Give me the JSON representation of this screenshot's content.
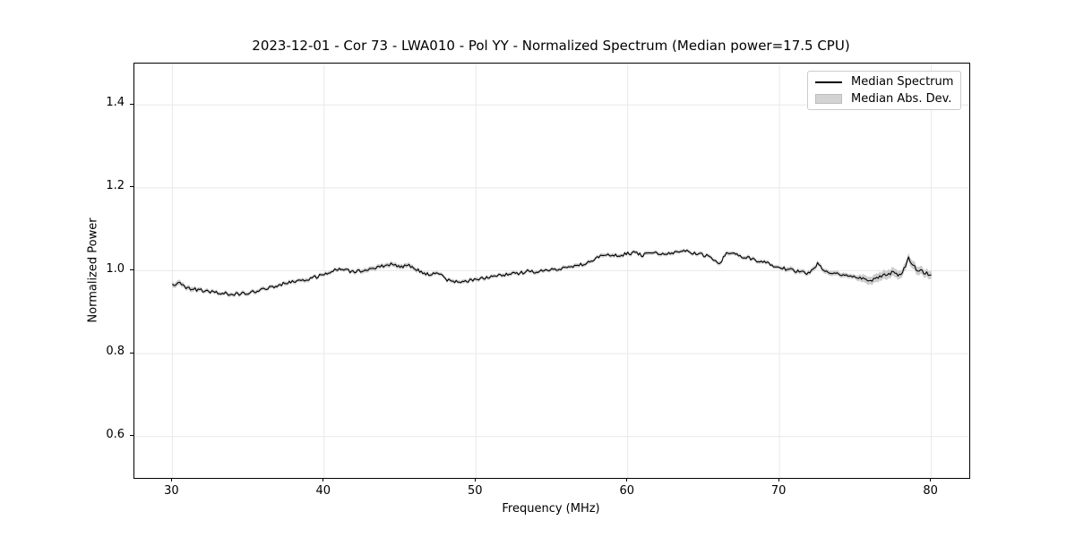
{
  "title": "2023-12-01 - Cor 73 - LWA010 - Pol YY - Normalized Spectrum (Median power=17.5 CPU)",
  "axes": {
    "xlabel": "Frequency (MHz)",
    "ylabel": "Normalized Power"
  },
  "legend": {
    "items": [
      {
        "label": "Median Spectrum",
        "type": "line"
      },
      {
        "label": "Median Abs. Dev.",
        "type": "patch"
      }
    ]
  },
  "colors": {
    "line": "#000000",
    "band": "#c4c4c4",
    "grid": "#e8e8e8",
    "spine": "#000000",
    "legend_border": "#cccccc",
    "background": "#ffffff"
  },
  "chart_data": {
    "type": "line",
    "title": "2023-12-01 - Cor 73 - LWA010 - Pol YY - Normalized Spectrum (Median power=17.5 CPU)",
    "xlabel": "Frequency (MHz)",
    "ylabel": "Normalized Power",
    "xlim": [
      27.5,
      82.5
    ],
    "ylim": [
      0.5,
      1.5
    ],
    "xticks": [
      30,
      40,
      50,
      60,
      70,
      80
    ],
    "yticks": [
      0.6,
      0.8,
      1.0,
      1.2,
      1.4
    ],
    "grid": true,
    "legend_position": "upper right",
    "x_start": 30.0,
    "x_step": 0.5,
    "series": [
      {
        "name": "Median Spectrum",
        "values": [
          0.965,
          0.971,
          0.958,
          0.955,
          0.952,
          0.949,
          0.947,
          0.945,
          0.943,
          0.944,
          0.947,
          0.951,
          0.955,
          0.96,
          0.965,
          0.97,
          0.974,
          0.978,
          0.981,
          0.985,
          0.991,
          1.0,
          1.005,
          1.0,
          0.997,
          1.0,
          1.005,
          1.008,
          1.013,
          1.016,
          1.01,
          1.013,
          1.005,
          0.996,
          0.99,
          0.996,
          0.979,
          0.975,
          0.974,
          0.976,
          0.978,
          0.982,
          0.985,
          0.988,
          0.99,
          0.993,
          0.995,
          1.0,
          0.997,
          1.0,
          1.003,
          1.005,
          1.008,
          1.011,
          1.015,
          1.021,
          1.032,
          1.04,
          1.035,
          1.038,
          1.041,
          1.044,
          1.037,
          1.045,
          1.042,
          1.04,
          1.044,
          1.05,
          1.046,
          1.042,
          1.038,
          1.032,
          1.014,
          1.045,
          1.04,
          1.035,
          1.03,
          1.025,
          1.02,
          1.014,
          1.008,
          1.004,
          1.0,
          0.996,
          0.993,
          1.018,
          0.998,
          0.995,
          0.991,
          0.988,
          0.985,
          0.98,
          0.973,
          0.985,
          0.991,
          0.996,
          0.988,
          1.03,
          1.004,
          0.996,
          0.99
        ]
      },
      {
        "name": "Median Abs. Dev.",
        "half_width": [
          0.006,
          0.006,
          0.005,
          0.005,
          0.004,
          0.004,
          0.004,
          0.004,
          0.004,
          0.004,
          0.004,
          0.004,
          0.004,
          0.004,
          0.004,
          0.004,
          0.004,
          0.004,
          0.004,
          0.004,
          0.004,
          0.004,
          0.004,
          0.004,
          0.004,
          0.005,
          0.005,
          0.005,
          0.005,
          0.005,
          0.005,
          0.005,
          0.005,
          0.004,
          0.004,
          0.004,
          0.004,
          0.004,
          0.004,
          0.004,
          0.004,
          0.004,
          0.004,
          0.004,
          0.004,
          0.004,
          0.004,
          0.004,
          0.004,
          0.004,
          0.004,
          0.004,
          0.004,
          0.004,
          0.004,
          0.004,
          0.004,
          0.004,
          0.004,
          0.004,
          0.004,
          0.004,
          0.004,
          0.004,
          0.004,
          0.004,
          0.004,
          0.004,
          0.004,
          0.004,
          0.004,
          0.004,
          0.004,
          0.004,
          0.004,
          0.004,
          0.004,
          0.004,
          0.004,
          0.004,
          0.004,
          0.005,
          0.005,
          0.005,
          0.005,
          0.005,
          0.005,
          0.005,
          0.005,
          0.005,
          0.005,
          0.009,
          0.009,
          0.01,
          0.01,
          0.01,
          0.009,
          0.009,
          0.01,
          0.009,
          0.009
        ]
      }
    ],
    "noise": {
      "seed": 20231201,
      "amplitude": 0.004,
      "sample_step_mhz": 0.1
    }
  }
}
